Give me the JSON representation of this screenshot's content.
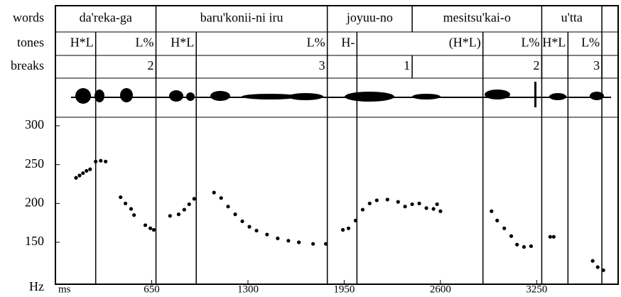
{
  "chart_data": {
    "type": "scatter",
    "y_label": "Hz",
    "x_label": "ms",
    "xlim": [
      0,
      3800
    ],
    "xticks": [
      650,
      1300,
      1950,
      2600,
      3250
    ],
    "ylim": [
      96,
      311
    ],
    "yticks": [
      150,
      200,
      250,
      300
    ],
    "tiers": [
      {
        "name": "words",
        "labels": [
          "da'reka-ga",
          "baru'konii-ni iru",
          "joyuu-no",
          "mesitsu'kai-o",
          "u'tta"
        ],
        "ends": [
          679,
          1836,
          2409,
          3284,
          3690
        ]
      },
      {
        "name": "tones",
        "labels": [
          "H*L",
          "L%",
          "H*L",
          "L%",
          "H-",
          "(H*L)",
          "L%",
          "H*L",
          "L%"
        ],
        "ends": [
          272,
          679,
          951,
          1836,
          2036,
          2887,
          3284,
          3461,
          3690
        ]
      },
      {
        "name": "breaks",
        "labels": [
          "2",
          "3",
          "1",
          "2",
          "3"
        ],
        "ends": [
          679,
          1836,
          2409,
          3284,
          3690
        ]
      }
    ],
    "series": [
      {
        "color": "#000000",
        "x": [
          139,
          163,
          186,
          210,
          234,
          272,
          306,
          339,
          440,
          473,
          511,
          531,
          607,
          641,
          664,
          774,
          832,
          870,
          903,
          937,
          1071,
          1119,
          1166,
          1214,
          1262,
          1310,
          1358,
          1429,
          1501,
          1573,
          1644,
          1740,
          1826,
          1941,
          1979,
          2027,
          2075,
          2122,
          2170,
          2242,
          2314,
          2361,
          2409,
          2457,
          2505,
          2553,
          2577,
          2600,
          2945,
          2983,
          3031,
          3078,
          3117,
          3164,
          3212,
          3341,
          3365,
          3628,
          3662,
          3700
        ],
        "values": [
          233,
          236,
          239,
          242,
          244,
          254,
          255,
          254,
          208,
          200,
          193,
          185,
          172,
          168,
          166,
          184,
          186,
          192,
          199,
          206,
          214,
          207,
          196,
          186,
          177,
          170,
          165,
          160,
          155,
          152,
          150,
          148,
          148,
          166,
          168,
          178,
          192,
          200,
          204,
          205,
          202,
          196,
          199,
          200,
          194,
          193,
          199,
          190,
          190,
          178,
          168,
          158,
          147,
          144,
          145,
          157,
          157,
          126,
          118,
          114
        ]
      }
    ]
  }
}
